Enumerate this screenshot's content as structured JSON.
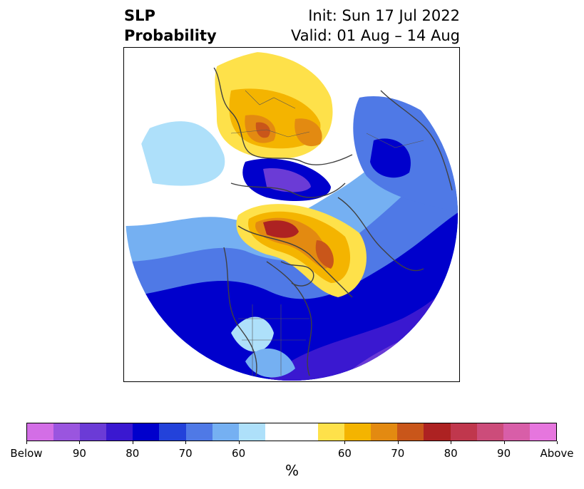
{
  "title": {
    "left_line1": "SLP",
    "left_line2": "Probability",
    "right_line1": "Init: Sun 17 Jul 2022",
    "right_line2": "Valid: 01 Aug – 14 Aug"
  },
  "colorbar": {
    "unit": "%",
    "colors": [
      "#d36ee6",
      "#9a55df",
      "#6b3bd6",
      "#3a18d0",
      "#0000cc",
      "#2342da",
      "#4f79e6",
      "#75b0f2",
      "#aee0fa",
      "#ffffff",
      "#ffffff",
      "#fee14a",
      "#f4b400",
      "#e38a11",
      "#c9561a",
      "#ad2222",
      "#c0374d",
      "#cc4c7a",
      "#d85ea8",
      "#e676de"
    ],
    "tick_labels": [
      "Below",
      "90",
      "80",
      "70",
      "60",
      "60",
      "70",
      "80",
      "90",
      "Above"
    ]
  },
  "map": {
    "projection": "north-polar-stereographic",
    "colors": {
      "below_70": "#2342da",
      "below_80": "#0000cc",
      "below_90": "#6b3bd6",
      "below_60": "#75b0f2",
      "below_50": "#aee0fa",
      "above_50": "#fee14a",
      "above_60": "#f4b400",
      "above_70": "#e38a11",
      "above_80": "#c9561a",
      "above_90": "#ad2222",
      "coast": "#404040"
    }
  }
}
